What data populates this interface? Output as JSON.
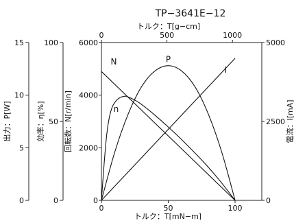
{
  "chart_data": {
    "type": "line",
    "title": "TP−3641E−12",
    "axes": {
      "torque_mNm": {
        "label": "トルク：T[mN−m]",
        "range": [
          0,
          120
        ],
        "ticks": [
          "0",
          "50",
          "100"
        ],
        "tick_values": [
          0,
          50,
          100
        ]
      },
      "torque_gcm": {
        "label": "トルク：T[g−cm]",
        "range": [
          0,
          1224
        ],
        "ticks": [
          "0",
          "500",
          "1000"
        ],
        "tick_values": [
          0,
          500,
          1000
        ]
      },
      "speed": {
        "label": "回転数：N[r/min]",
        "range": [
          0,
          6000
        ],
        "ticks": [
          "0",
          "2000",
          "4000",
          "6000"
        ],
        "tick_values": [
          0,
          2000,
          4000,
          6000
        ]
      },
      "output": {
        "label": "出力：P[W]",
        "range": [
          0,
          15
        ],
        "ticks": [
          "0",
          "5",
          "10",
          "15"
        ],
        "tick_values": [
          0,
          5,
          10,
          15
        ]
      },
      "efficiency": {
        "label": "効率：η[%]",
        "range": [
          0,
          100
        ],
        "ticks": [
          "0",
          "50",
          "100"
        ],
        "tick_values": [
          0,
          50,
          100
        ]
      },
      "current": {
        "label": "電流：I[mA]",
        "range": [
          0,
          5000
        ],
        "ticks": [
          "0",
          "2500",
          "5000"
        ],
        "tick_values": [
          0,
          2500,
          5000
        ]
      }
    },
    "series": [
      {
        "name": "N",
        "axis": "speed",
        "x": [
          0,
          100
        ],
        "y": [
          4900,
          0
        ]
      },
      {
        "name": "I",
        "axis": "current",
        "x": [
          0,
          100
        ],
        "y": [
          0,
          4500
        ]
      },
      {
        "name": "P",
        "axis": "output",
        "x": [
          0,
          10,
          20,
          30,
          40,
          50,
          60,
          70,
          80,
          90,
          100
        ],
        "y": [
          0,
          4.6,
          8.2,
          10.8,
          12.3,
          12.8,
          12.3,
          10.8,
          8.2,
          4.6,
          0
        ]
      },
      {
        "name": "n",
        "axis": "efficiency",
        "x": [
          0,
          2,
          4,
          6,
          8,
          10,
          12,
          15,
          18,
          20,
          25,
          30,
          40,
          50,
          60,
          70,
          80,
          90,
          100
        ],
        "y": [
          0,
          23,
          42,
          53,
          59,
          62,
          64,
          65.5,
          66,
          65.5,
          63.5,
          60.8,
          54,
          46.5,
          38.5,
          30,
          21,
          11,
          0
        ]
      }
    ]
  }
}
